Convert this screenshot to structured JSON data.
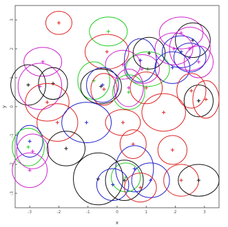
{
  "chart_data": {
    "type": "scatter",
    "title": "",
    "xlabel": "x",
    "ylabel": "y",
    "xlim": [
      -3.5,
      3.5
    ],
    "ylim": [
      -3.5,
      3.5
    ],
    "xticks": [
      -3,
      -2,
      -1,
      0,
      1,
      2,
      3
    ],
    "yticks": [
      -3,
      -2,
      -1,
      0,
      1,
      2,
      3
    ],
    "xtick_labels": [
      "-3",
      "-2",
      "-1",
      "0",
      "1",
      "2",
      "3"
    ],
    "ytick_labels": [
      "-3",
      "-2",
      "-1",
      "0",
      "1",
      "2",
      "3"
    ],
    "grid": false,
    "colors": {
      "red": "#dd2222",
      "green": "#22cc22",
      "blue": "#2222cc",
      "magenta": "#cc22cc",
      "black": "#111111",
      "axis": "#444444"
    },
    "points": [
      {
        "x": -2.0,
        "y": 2.9,
        "rx": 0.45,
        "ry": 0.4,
        "color": "red"
      },
      {
        "x": -0.3,
        "y": 2.6,
        "rx": 0.65,
        "ry": 0.5,
        "color": "green"
      },
      {
        "x": -0.35,
        "y": 1.9,
        "rx": 0.75,
        "ry": 0.6,
        "color": "red"
      },
      {
        "x": -2.55,
        "y": 1.55,
        "rx": 0.65,
        "ry": 0.5,
        "color": "magenta"
      },
      {
        "x": 0.2,
        "y": 1.45,
        "rx": 0.6,
        "ry": 0.5,
        "color": "magenta"
      },
      {
        "x": 0.85,
        "y": 1.3,
        "rx": 0.6,
        "ry": 0.5,
        "color": "magenta"
      },
      {
        "x": 1.05,
        "y": 1.3,
        "rx": 0.75,
        "ry": 0.6,
        "color": "green"
      },
      {
        "x": 0.8,
        "y": 1.6,
        "rx": 0.55,
        "ry": 0.75,
        "color": "blue"
      },
      {
        "x": 1.1,
        "y": 1.85,
        "rx": 0.55,
        "ry": 0.55,
        "color": "black"
      },
      {
        "x": 2.2,
        "y": 2.55,
        "rx": 0.75,
        "ry": 0.55,
        "color": "magenta"
      },
      {
        "x": 2.6,
        "y": 2.3,
        "rx": 0.6,
        "ry": 0.6,
        "color": "black"
      },
      {
        "x": 2.5,
        "y": 2.0,
        "rx": 0.7,
        "ry": 0.75,
        "color": "magenta"
      },
      {
        "x": 2.2,
        "y": 1.9,
        "rx": 0.65,
        "ry": 0.55,
        "color": "blue"
      },
      {
        "x": 2.5,
        "y": 1.7,
        "rx": 0.55,
        "ry": 0.5,
        "color": "blue"
      },
      {
        "x": 2.8,
        "y": 1.55,
        "rx": 0.5,
        "ry": 0.55,
        "color": "magenta"
      },
      {
        "x": 1.9,
        "y": 1.35,
        "rx": 0.6,
        "ry": 0.55,
        "color": "blue"
      },
      {
        "x": 1.95,
        "y": 2.0,
        "rx": 0.65,
        "ry": 0.55,
        "color": "magenta"
      },
      {
        "x": -3.05,
        "y": 0.75,
        "rx": 0.6,
        "ry": 0.7,
        "color": "black"
      },
      {
        "x": -2.65,
        "y": 0.7,
        "rx": 0.75,
        "ry": 0.8,
        "color": "magenta"
      },
      {
        "x": -2.2,
        "y": 0.8,
        "rx": 0.5,
        "ry": 0.55,
        "color": "black"
      },
      {
        "x": -2.4,
        "y": 0.15,
        "rx": 0.75,
        "ry": 0.65,
        "color": "red"
      },
      {
        "x": -0.8,
        "y": 0.9,
        "rx": 0.55,
        "ry": 0.65,
        "color": "green"
      },
      {
        "x": -0.55,
        "y": 0.7,
        "rx": 0.7,
        "ry": 0.6,
        "color": "black"
      },
      {
        "x": -0.45,
        "y": 0.6,
        "rx": 0.45,
        "ry": 0.55,
        "color": "red"
      },
      {
        "x": -0.5,
        "y": 0.75,
        "rx": 0.55,
        "ry": 0.6,
        "color": "blue"
      },
      {
        "x": 0.4,
        "y": 0.5,
        "rx": 0.55,
        "ry": 0.6,
        "color": "green"
      },
      {
        "x": 0.4,
        "y": 0.65,
        "rx": 0.5,
        "ry": 0.65,
        "color": "magenta"
      },
      {
        "x": 1.0,
        "y": 0.65,
        "rx": 0.55,
        "ry": 0.55,
        "color": "red"
      },
      {
        "x": 2.55,
        "y": 0.55,
        "rx": 0.5,
        "ry": 0.6,
        "color": "red"
      },
      {
        "x": 2.8,
        "y": 0.2,
        "rx": 0.5,
        "ry": 0.55,
        "color": "black"
      },
      {
        "x": 3.05,
        "y": 0.25,
        "rx": 0.45,
        "ry": 0.65,
        "color": "red"
      },
      {
        "x": 1.6,
        "y": -0.2,
        "rx": 0.75,
        "ry": 0.65,
        "color": "red"
      },
      {
        "x": -2.05,
        "y": -0.55,
        "rx": 0.7,
        "ry": 0.65,
        "color": "red"
      },
      {
        "x": -1.05,
        "y": -0.55,
        "rx": 0.85,
        "ry": 0.7,
        "color": "blue"
      },
      {
        "x": 0.2,
        "y": -0.55,
        "rx": 0.6,
        "ry": 0.45,
        "color": "red"
      },
      {
        "x": -3.0,
        "y": -1.2,
        "rx": 0.45,
        "ry": 0.55,
        "color": "blue"
      },
      {
        "x": -3.05,
        "y": -1.4,
        "rx": 0.55,
        "ry": 0.65,
        "color": "green"
      },
      {
        "x": -2.9,
        "y": -1.55,
        "rx": 0.55,
        "ry": 0.6,
        "color": "magenta"
      },
      {
        "x": -3.0,
        "y": -2.2,
        "rx": 0.6,
        "ry": 0.6,
        "color": "magenta"
      },
      {
        "x": -1.75,
        "y": -1.45,
        "rx": 0.65,
        "ry": 0.6,
        "color": "black"
      },
      {
        "x": 0.55,
        "y": -1.3,
        "rx": 0.45,
        "ry": 0.5,
        "color": "red"
      },
      {
        "x": 1.9,
        "y": -1.5,
        "rx": 0.5,
        "ry": 0.5,
        "color": "red"
      },
      {
        "x": 0.6,
        "y": -2.15,
        "rx": 0.65,
        "ry": 0.8,
        "color": "blue"
      },
      {
        "x": 0.3,
        "y": -2.45,
        "rx": 0.5,
        "ry": 0.5,
        "color": "green"
      },
      {
        "x": -0.65,
        "y": -2.5,
        "rx": 0.85,
        "ry": 0.9,
        "color": "black"
      },
      {
        "x": 0.25,
        "y": -2.55,
        "rx": 0.65,
        "ry": 0.7,
        "color": "black"
      },
      {
        "x": -0.15,
        "y": -2.7,
        "rx": 0.55,
        "ry": 0.55,
        "color": "blue"
      },
      {
        "x": 0.8,
        "y": -2.8,
        "rx": 0.55,
        "ry": 0.5,
        "color": "red"
      },
      {
        "x": 1.15,
        "y": -2.55,
        "rx": 0.65,
        "ry": 0.6,
        "color": "blue"
      },
      {
        "x": 2.2,
        "y": -2.55,
        "rx": 0.6,
        "ry": 0.55,
        "color": "red"
      },
      {
        "x": 2.8,
        "y": -2.55,
        "rx": 0.7,
        "ry": 0.55,
        "color": "black"
      }
    ]
  }
}
